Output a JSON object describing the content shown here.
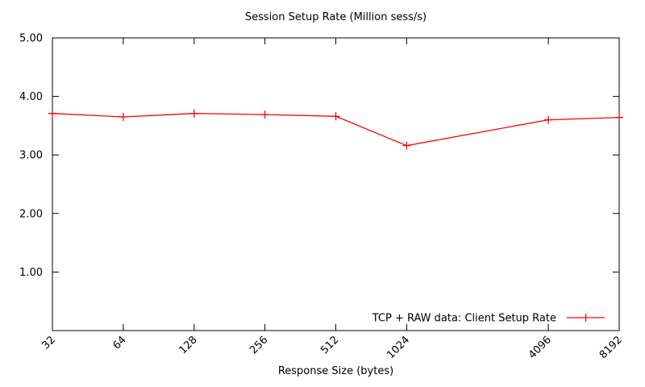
{
  "chart_data": {
    "type": "line",
    "title": "Session Setup Rate (Million sess/s)",
    "xlabel": "Response Size (bytes)",
    "ylabel": "",
    "x": [
      32,
      64,
      128,
      256,
      512,
      1024,
      4096,
      8192
    ],
    "x_tick_labels": [
      "32",
      "64",
      "128",
      "256",
      "512",
      "1024",
      "4096",
      "8192"
    ],
    "x_scale": "log2",
    "xlim": [
      32,
      8192
    ],
    "y_ticks": [
      1,
      2,
      3,
      4,
      5
    ],
    "y_tick_labels": [
      "1.00",
      "2.00",
      "3.00",
      "4.00",
      "5.00"
    ],
    "ylim": [
      0,
      5
    ],
    "grid": false,
    "legend_position": "bottom-right-inside",
    "axis_color": "#000000",
    "series": [
      {
        "name": "TCP + RAW data: Client Setup Rate",
        "color": "#ff0000",
        "marker": "plus",
        "values": [
          3.71,
          3.65,
          3.71,
          3.69,
          3.66,
          3.16,
          3.6,
          3.64
        ]
      }
    ]
  }
}
